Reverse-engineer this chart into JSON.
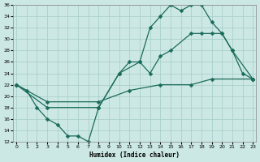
{
  "xlabel": "Humidex (Indice chaleur)",
  "bg_color": "#cce8e4",
  "grid_color": "#aacfca",
  "line_color": "#1a6b5a",
  "xmin": 0,
  "xmax": 23,
  "ymin": 12,
  "ymax": 36,
  "yticks": [
    12,
    14,
    16,
    18,
    20,
    22,
    24,
    26,
    28,
    30,
    32,
    34,
    36
  ],
  "xticks": [
    0,
    1,
    2,
    3,
    4,
    5,
    6,
    7,
    8,
    9,
    10,
    11,
    12,
    13,
    14,
    15,
    16,
    17,
    18,
    19,
    20,
    21,
    22,
    23
  ],
  "line1_x": [
    0,
    1,
    2,
    3,
    4,
    5,
    6,
    7,
    8,
    10,
    11,
    12,
    13,
    14,
    15,
    16,
    17,
    18,
    19,
    20,
    21,
    22,
    23
  ],
  "line1_y": [
    22,
    21,
    18,
    16,
    15,
    13,
    13,
    12,
    18,
    24,
    26,
    26,
    32,
    34,
    36,
    35,
    36,
    36,
    33,
    31,
    28,
    24,
    23
  ],
  "line2_x": [
    0,
    3,
    8,
    10,
    12,
    13,
    14,
    15,
    17,
    18,
    19,
    20,
    21,
    23
  ],
  "line2_y": [
    22,
    18,
    18,
    24,
    26,
    24,
    27,
    28,
    31,
    31,
    31,
    31,
    28,
    23
  ],
  "line3_x": [
    0,
    3,
    8,
    11,
    14,
    17,
    19,
    23
  ],
  "line3_y": [
    22,
    19,
    19,
    21,
    22,
    22,
    23,
    23
  ]
}
